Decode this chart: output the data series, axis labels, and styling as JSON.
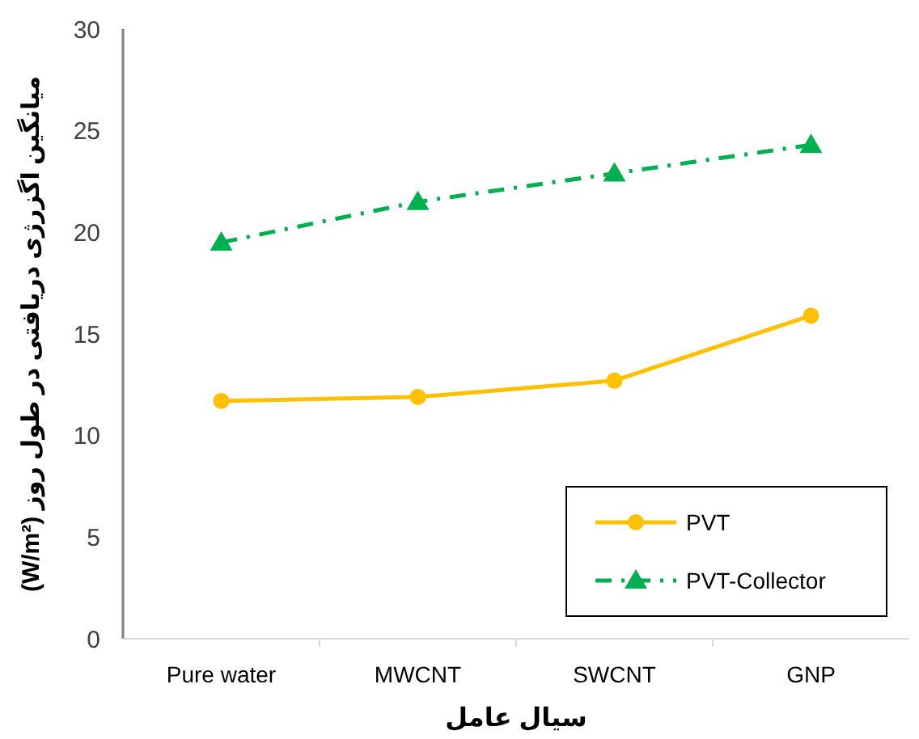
{
  "chart_data": {
    "type": "line",
    "xlabel": "سیال عامل",
    "ylabel": "میانگین اگزرژی دریافتی در طول روز (W/m²)",
    "categories": [
      "Pure water",
      "MWCNT",
      "SWCNT",
      "GNP"
    ],
    "ylim": [
      0,
      30
    ],
    "yticks": [
      0,
      5,
      10,
      15,
      20,
      25,
      30
    ],
    "grid": false,
    "legend": "bottom right",
    "series": [
      {
        "name": "PVT",
        "color": "#ffc000",
        "values": [
          11.7,
          11.9,
          12.7,
          15.9
        ],
        "marker": "circle",
        "line_style": "solid"
      },
      {
        "name": "PVT-Collector",
        "color": "#00b050",
        "values": [
          19.5,
          21.5,
          22.9,
          24.3
        ],
        "marker": "triangle",
        "line_style": "dashdot"
      }
    ]
  }
}
